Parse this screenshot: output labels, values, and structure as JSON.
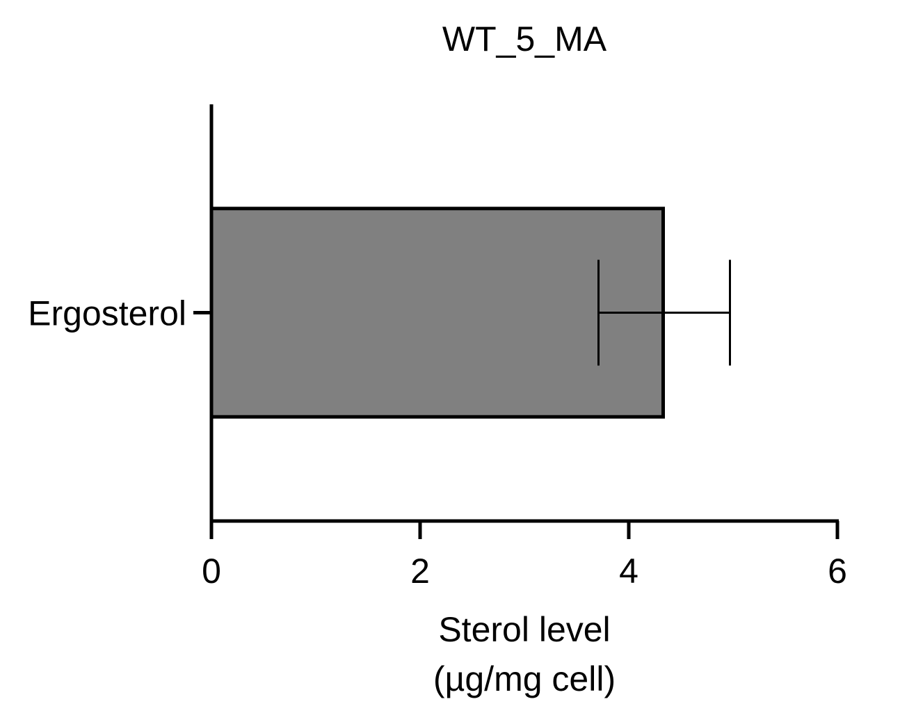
{
  "chart_data": {
    "type": "bar",
    "orientation": "horizontal",
    "title": "WT_5_MA",
    "categories": [
      "Ergosterol"
    ],
    "values": [
      4.33
    ],
    "error": [
      {
        "low": 3.71,
        "high": 4.97
      }
    ],
    "xlabel": [
      "Sterol level",
      "(µg/mg cell)"
    ],
    "ylabel": "",
    "xlim": [
      0,
      6
    ],
    "xticks": [
      0,
      2,
      4,
      6
    ],
    "grid": false,
    "legend": "none",
    "colors": {
      "bar_fill": "#808080",
      "bar_stroke": "#000000",
      "axis": "#000000",
      "error_bar": "#000000"
    }
  }
}
